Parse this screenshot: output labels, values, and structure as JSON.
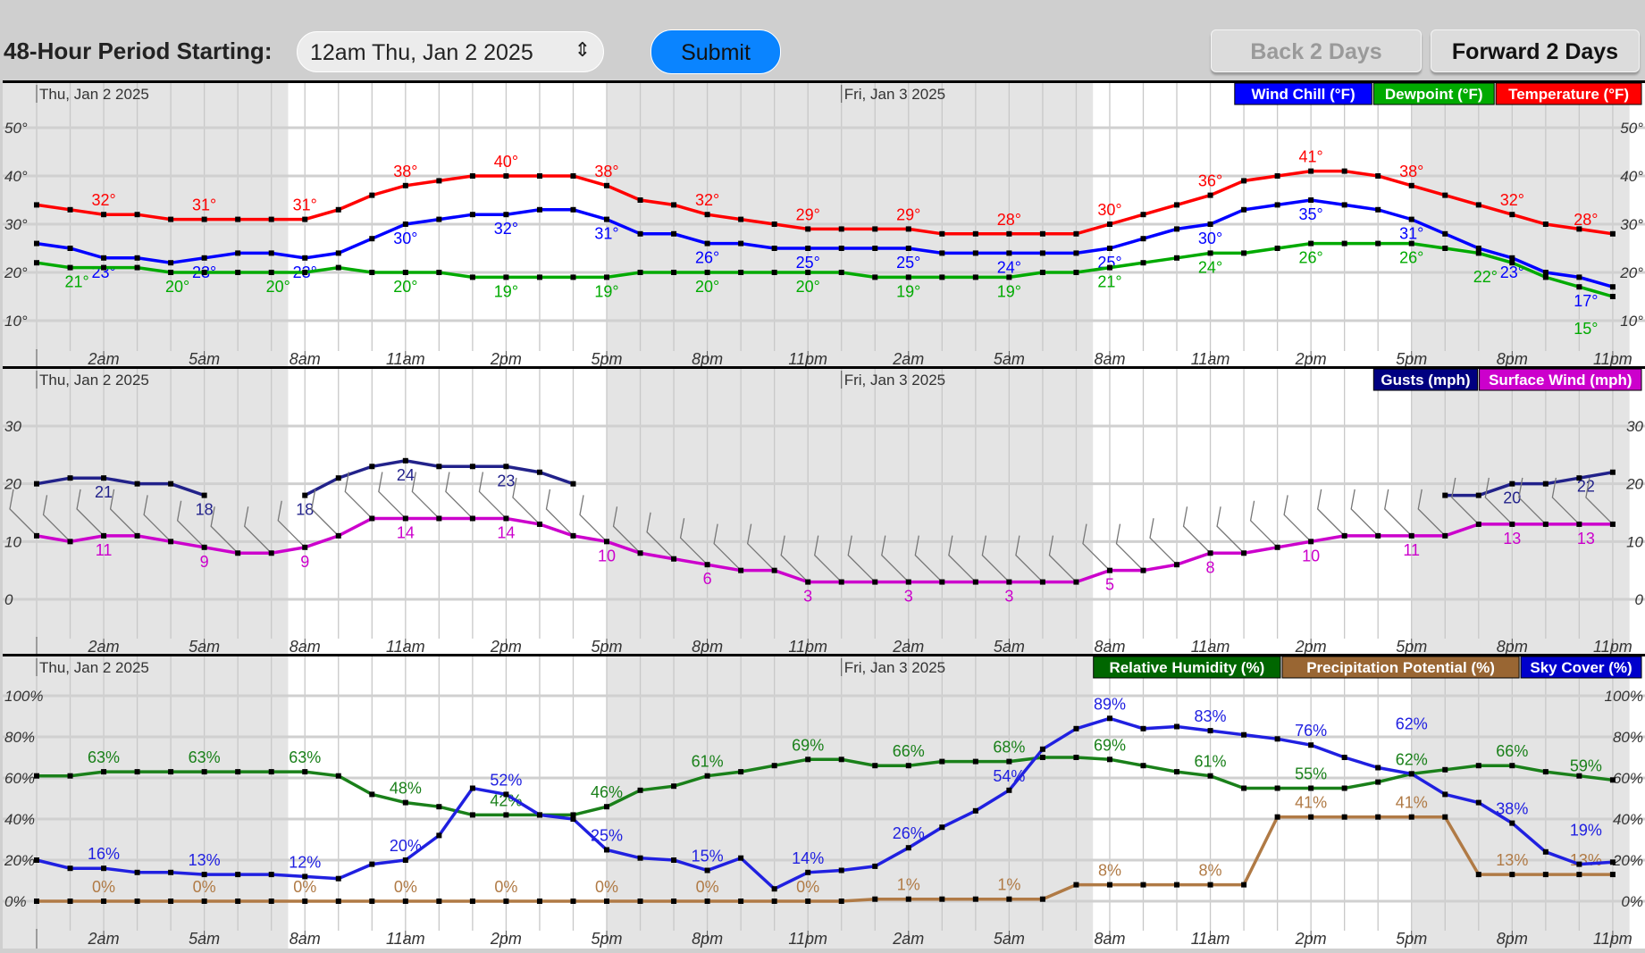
{
  "toolbar": {
    "period_label": "48-Hour Period Starting:",
    "period_value": "12am Thu, Jan 2 2025",
    "submit": "Submit",
    "back": "Back 2 Days",
    "forward": "Forward 2 Days"
  },
  "dates": [
    "Thu, Jan 2 2025",
    "Fri, Jan 3 2025"
  ],
  "hour_ticks": [
    "2am",
    "5am",
    "8am",
    "11am",
    "2pm",
    "5pm",
    "8pm",
    "11pm",
    "2am",
    "5am",
    "8am",
    "11am",
    "2pm",
    "5pm",
    "8pm",
    "11pm"
  ],
  "night_shading_hours": [
    [
      0,
      7.5
    ],
    [
      17,
      31.5
    ],
    [
      41,
      47.5
    ]
  ],
  "chart_data": [
    {
      "type": "line",
      "title": "Temperature / Wind Chill / Dewpoint",
      "unit": "°",
      "ylim": [
        5,
        55
      ],
      "yticks": [
        10,
        20,
        30,
        40,
        50
      ],
      "ytick_labels": [
        "10°",
        "20°",
        "30°",
        "40°",
        "50°"
      ],
      "x": "hours 0-47 from 12am Thu, Jan 2 2025",
      "legend": [
        {
          "name": "Wind Chill (°F)",
          "color": "#0000ff"
        },
        {
          "name": "Dewpoint (°F)",
          "color": "#00aa00"
        },
        {
          "name": "Temperature (°F)",
          "color": "#ff0000"
        }
      ],
      "series": [
        {
          "name": "Temperature (°F)",
          "color": "#ff0000",
          "label_pos": "above",
          "values": [
            34,
            33,
            32,
            32,
            31,
            31,
            31,
            31,
            31,
            33,
            36,
            38,
            39,
            40,
            40,
            40,
            40,
            38,
            35,
            34,
            32,
            31,
            30,
            29,
            29,
            29,
            29,
            28,
            28,
            28,
            28,
            28,
            30,
            32,
            34,
            36,
            39,
            40,
            41,
            41,
            40,
            38,
            36,
            34,
            32,
            30,
            29,
            28
          ]
        },
        {
          "name": "Wind Chill (°F)",
          "color": "#0000ff",
          "label_pos": "below",
          "values": [
            26,
            25,
            23,
            23,
            22,
            23,
            24,
            24,
            23,
            24,
            27,
            30,
            31,
            32,
            32,
            33,
            33,
            31,
            28,
            28,
            26,
            26,
            25,
            25,
            25,
            25,
            25,
            24,
            24,
            24,
            24,
            24,
            25,
            27,
            29,
            30,
            33,
            34,
            35,
            34,
            33,
            31,
            28,
            25,
            23,
            20,
            19,
            17
          ]
        },
        {
          "name": "Dewpoint (°F)",
          "color": "#00aa00",
          "label_pos": "below",
          "values": [
            22,
            21,
            21,
            21,
            20,
            20,
            20,
            20,
            20,
            21,
            20,
            20,
            20,
            19,
            19,
            19,
            19,
            19,
            20,
            20,
            20,
            20,
            20,
            20,
            20,
            19,
            19,
            19,
            19,
            19,
            20,
            20,
            21,
            22,
            23,
            24,
            24,
            25,
            26,
            26,
            26,
            26,
            25,
            24,
            22,
            19,
            17,
            15
          ]
        }
      ]
    },
    {
      "type": "line",
      "title": "Gusts / Surface Wind",
      "unit": "",
      "ylim": [
        -3,
        33
      ],
      "yticks": [
        0,
        10,
        20,
        30
      ],
      "ytick_labels": [
        "0",
        "10",
        "20",
        "30"
      ],
      "legend": [
        {
          "name": "Gusts (mph)",
          "color": "#000080"
        },
        {
          "name": "Surface Wind (mph)",
          "color": "#cc00cc"
        }
      ],
      "series": [
        {
          "name": "Gusts (mph)",
          "color": "#22228a",
          "label_pos": "below",
          "values": [
            20,
            21,
            21,
            20,
            20,
            18,
            null,
            null,
            18,
            21,
            23,
            24,
            23,
            23,
            23,
            22,
            20,
            null,
            null,
            null,
            null,
            null,
            null,
            null,
            null,
            null,
            null,
            null,
            null,
            null,
            null,
            null,
            null,
            null,
            null,
            null,
            null,
            null,
            null,
            null,
            null,
            null,
            18,
            18,
            20,
            20,
            21,
            22
          ]
        },
        {
          "name": "Surface Wind (mph)",
          "color": "#cc00cc",
          "label_pos": "below",
          "barbs": true,
          "values": [
            11,
            10,
            11,
            11,
            10,
            9,
            8,
            8,
            9,
            11,
            14,
            14,
            14,
            14,
            14,
            13,
            11,
            10,
            8,
            7,
            6,
            5,
            5,
            3,
            3,
            3,
            3,
            3,
            3,
            3,
            3,
            3,
            5,
            5,
            6,
            8,
            8,
            9,
            10,
            11,
            11,
            11,
            11,
            13,
            13,
            13,
            13,
            13
          ]
        }
      ]
    },
    {
      "type": "line",
      "title": "Relative Humidity / Precipitation Potential / Sky Cover",
      "unit": "%",
      "ylim": [
        -8,
        108
      ],
      "yticks": [
        0,
        20,
        40,
        60,
        80,
        100
      ],
      "ytick_labels": [
        "0%",
        "20%",
        "40%",
        "60%",
        "80%",
        "100%"
      ],
      "legend": [
        {
          "name": "Relative Humidity (%)",
          "color": "#006600"
        },
        {
          "name": "Precipitation Potential (%)",
          "color": "#996633"
        },
        {
          "name": "Sky Cover (%)",
          "color": "#0000cc"
        }
      ],
      "series": [
        {
          "name": "Relative Humidity (%)",
          "color": "#1a801a",
          "label_pos": "above",
          "values": [
            61,
            61,
            63,
            63,
            63,
            63,
            63,
            63,
            63,
            61,
            52,
            48,
            46,
            42,
            42,
            42,
            42,
            46,
            54,
            56,
            61,
            63,
            66,
            69,
            69,
            66,
            66,
            68,
            68,
            68,
            70,
            70,
            69,
            66,
            63,
            61,
            55,
            55,
            55,
            55,
            58,
            62,
            64,
            66,
            66,
            63,
            61,
            59
          ]
        },
        {
          "name": "Precipitation Potential (%)",
          "color": "#b07a45",
          "label_pos": "above",
          "values": [
            0,
            0,
            0,
            0,
            0,
            0,
            0,
            0,
            0,
            0,
            0,
            0,
            0,
            0,
            0,
            0,
            0,
            0,
            0,
            0,
            0,
            0,
            0,
            0,
            0,
            1,
            1,
            1,
            1,
            1,
            1,
            8,
            8,
            8,
            8,
            8,
            8,
            41,
            41,
            41,
            41,
            41,
            41,
            13,
            13,
            13,
            13,
            13
          ]
        },
        {
          "name": "Sky Cover (%)",
          "color": "#2020e0",
          "label_pos": "above",
          "values": [
            20,
            16,
            16,
            14,
            14,
            13,
            13,
            13,
            12,
            11,
            18,
            20,
            32,
            55,
            52,
            42,
            40,
            25,
            21,
            20,
            15,
            21,
            6,
            14,
            15,
            17,
            26,
            36,
            44,
            54,
            74,
            84,
            89,
            84,
            85,
            83,
            81,
            79,
            76,
            70,
            65,
            62,
            52,
            48,
            38,
            24,
            18,
            19
          ]
        }
      ]
    }
  ]
}
